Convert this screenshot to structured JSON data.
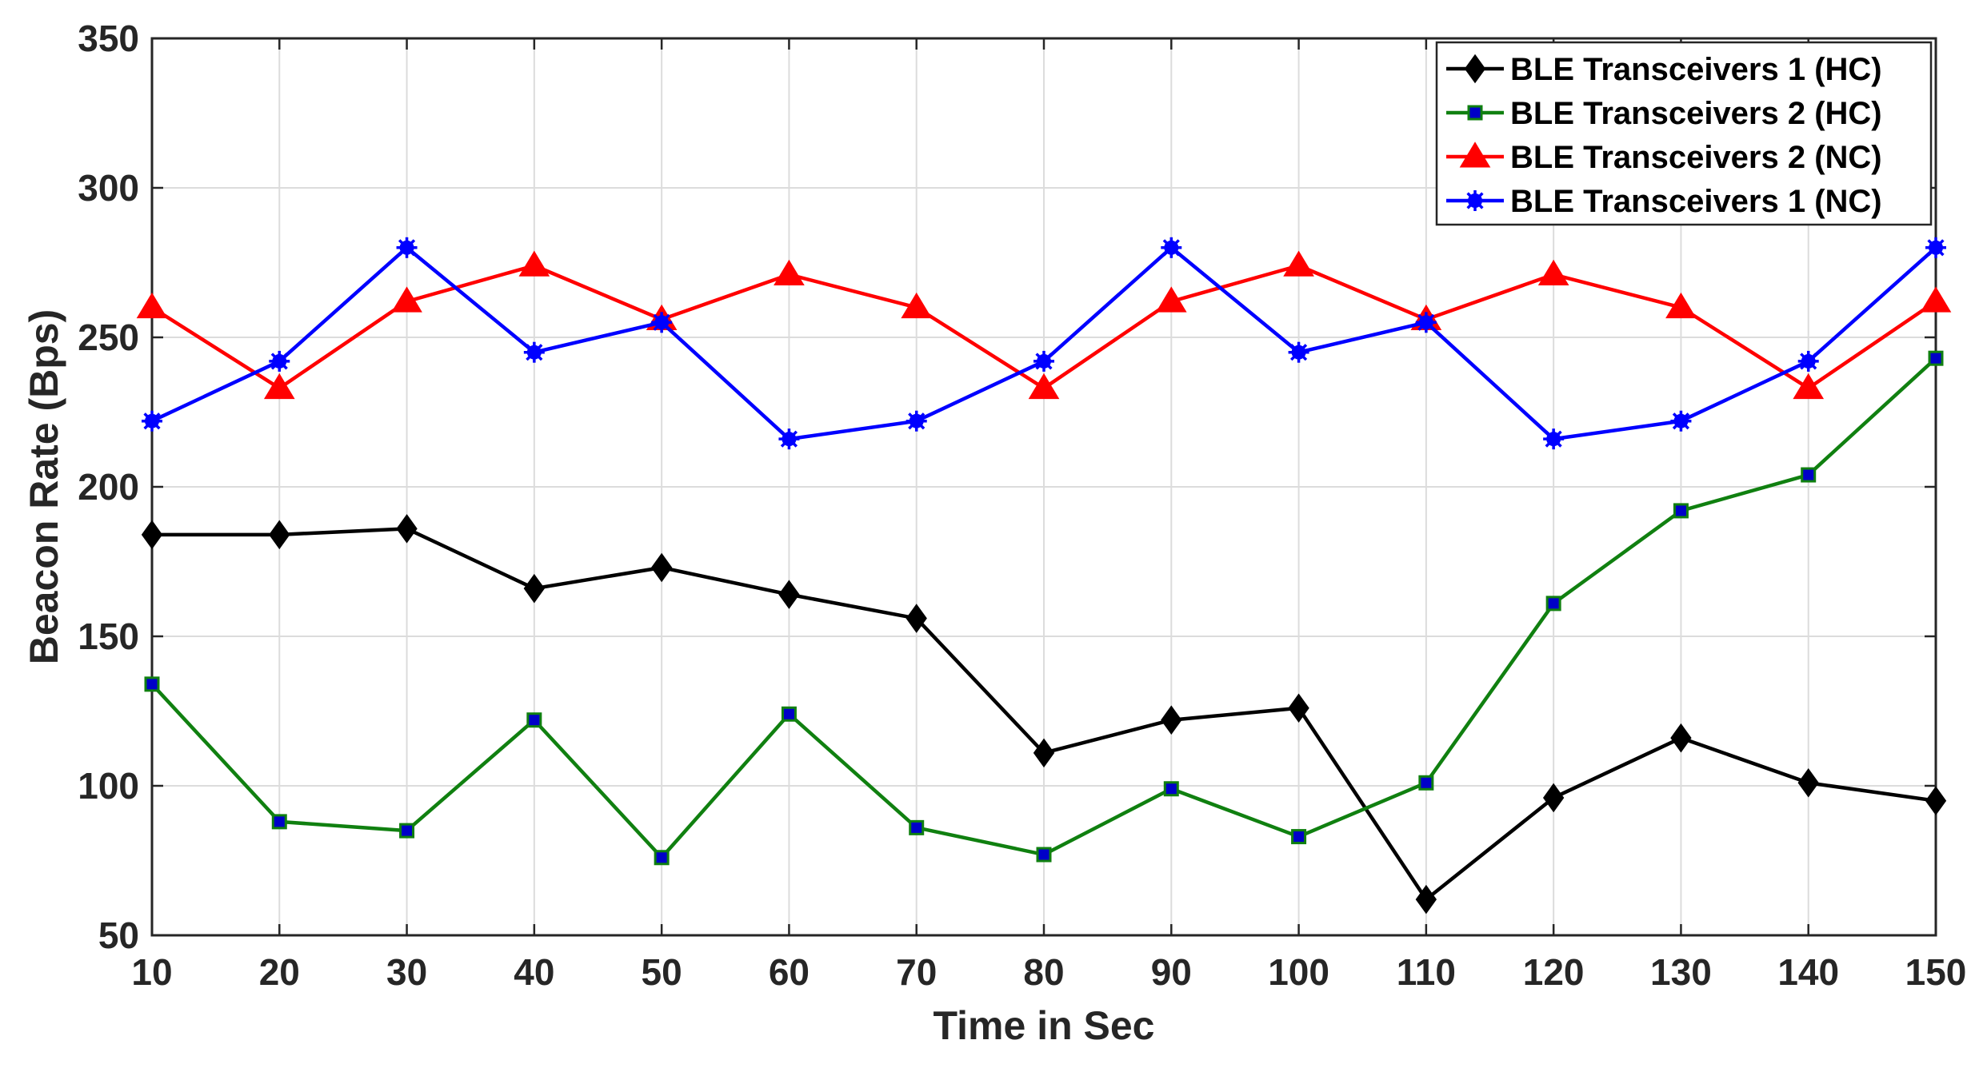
{
  "chart_data": {
    "type": "line",
    "title": "",
    "xlabel": "Time in Sec",
    "ylabel": "Beacon Rate (Bps)",
    "xlim": [
      10,
      150
    ],
    "ylim": [
      50,
      350
    ],
    "xticks": [
      10,
      20,
      30,
      40,
      50,
      60,
      70,
      80,
      90,
      100,
      110,
      120,
      130,
      140,
      150
    ],
    "yticks": [
      50,
      100,
      150,
      200,
      250,
      300,
      350
    ],
    "grid": true,
    "legend_position": "top-right",
    "x": [
      10,
      20,
      30,
      40,
      50,
      60,
      70,
      80,
      90,
      100,
      110,
      120,
      130,
      140,
      150
    ],
    "series": [
      {
        "name": "BLE Transceivers 1 (HC)",
        "color": "#000000",
        "marker": "diamond",
        "values": [
          184,
          184,
          186,
          166,
          173,
          164,
          156,
          111,
          122,
          126,
          62,
          96,
          116,
          101,
          95
        ]
      },
      {
        "name": "BLE Transceivers 2 (HC)",
        "color": "#108010",
        "marker_color": "#0000c8",
        "marker": "square",
        "values": [
          134,
          88,
          85,
          122,
          76,
          124,
          86,
          77,
          99,
          83,
          101,
          161,
          192,
          204,
          243
        ]
      },
      {
        "name": "BLE Transceivers 2 (NC)",
        "color": "#ff0000",
        "marker": "triangle",
        "values": [
          260,
          233,
          262,
          274,
          256,
          271,
          260,
          233,
          262,
          274,
          256,
          271,
          260,
          233,
          262
        ]
      },
      {
        "name": "BLE Transceivers 1 (NC)",
        "color": "#0000ff",
        "marker": "star",
        "values": [
          222,
          242,
          280,
          245,
          255,
          216,
          222,
          242,
          280,
          245,
          255,
          216,
          222,
          242,
          280
        ]
      }
    ]
  }
}
